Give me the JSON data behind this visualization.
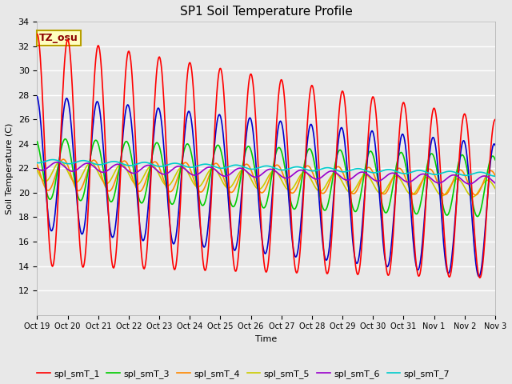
{
  "title": "SP1 Soil Temperature Profile",
  "xlabel": "Time",
  "ylabel": "Soil Temperature (C)",
  "ylim": [
    10,
    34
  ],
  "yticks": [
    12,
    14,
    16,
    18,
    20,
    22,
    24,
    26,
    28,
    30,
    32,
    34
  ],
  "background_color": "#e8e8e8",
  "plot_bg_color": "#e8e8e8",
  "annotation_text": "TZ_osu",
  "annotation_color": "#8B0000",
  "annotation_bg": "#ffffc0",
  "annotation_border": "#b8a000",
  "series_colors": {
    "spl_smT_1": "#ff0000",
    "spl_smT_2": "#0000cc",
    "spl_smT_3": "#00cc00",
    "spl_smT_4": "#ff8800",
    "spl_smT_5": "#cccc00",
    "spl_smT_6": "#9900cc",
    "spl_smT_7": "#00cccc"
  },
  "x_tick_labels": [
    "Oct 19",
    "Oct 20",
    "Oct 21",
    "Oct 22",
    "Oct 23",
    "Oct 24",
    "Oct 25",
    "Oct 26",
    "Oct 27",
    "Oct 28",
    "Oct 29",
    "Oct 30",
    "Oct 31",
    "Nov 1",
    "Nov 2",
    "Nov 3"
  ],
  "num_days": 15,
  "points_per_day": 48
}
